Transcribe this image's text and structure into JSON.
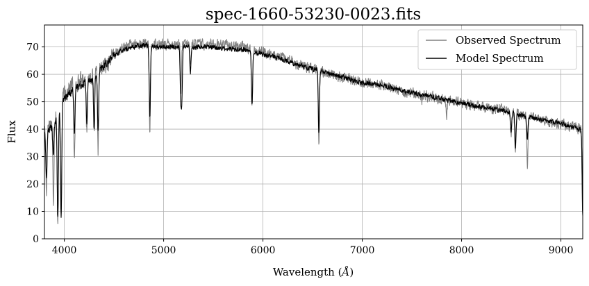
{
  "chart_data": {
    "type": "line",
    "title": "spec-1660-53230-0023.fits",
    "xlabel": "Wavelength (",
    "xlabel_unit": "Å",
    "xlabel_close": ")",
    "ylabel": "Flux",
    "xlim": [
      3800,
      9220
    ],
    "ylim": [
      0,
      78
    ],
    "xticks": [
      4000,
      5000,
      6000,
      7000,
      8000,
      9000
    ],
    "yticks": [
      0,
      10,
      20,
      30,
      40,
      50,
      60,
      70
    ],
    "grid": true,
    "legend_position": "top-right",
    "series": [
      {
        "name": "Observed Spectrum",
        "color": "#808080",
        "continuum": [
          [
            3800,
            40
          ],
          [
            3900,
            44
          ],
          [
            4000,
            53
          ],
          [
            4100,
            57
          ],
          [
            4200,
            58
          ],
          [
            4300,
            60
          ],
          [
            4400,
            63
          ],
          [
            4500,
            67
          ],
          [
            4600,
            70
          ],
          [
            4700,
            71
          ],
          [
            4800,
            71
          ],
          [
            4900,
            71
          ],
          [
            5000,
            71
          ],
          [
            5200,
            71
          ],
          [
            5400,
            71
          ],
          [
            5600,
            71
          ],
          [
            5800,
            70
          ],
          [
            6000,
            68
          ],
          [
            6200,
            66
          ],
          [
            6400,
            63
          ],
          [
            6600,
            61
          ],
          [
            6800,
            59
          ],
          [
            7000,
            57
          ],
          [
            7200,
            56
          ],
          [
            7400,
            54
          ],
          [
            7600,
            52.5
          ],
          [
            7800,
            51
          ],
          [
            8000,
            49.5
          ],
          [
            8200,
            48
          ],
          [
            8400,
            47
          ],
          [
            8600,
            45
          ],
          [
            8800,
            43.5
          ],
          [
            9000,
            42
          ],
          [
            9220,
            40
          ]
        ],
        "noise": 2.6,
        "lines": [
          [
            3820,
            18
          ],
          [
            3890,
            14
          ],
          [
            3934,
            4
          ],
          [
            3968,
            9
          ],
          [
            4102,
            28
          ],
          [
            4227,
            40
          ],
          [
            4300,
            38
          ],
          [
            4340,
            33
          ],
          [
            4861,
            39
          ],
          [
            5175,
            54
          ],
          [
            5270,
            63
          ],
          [
            5890,
            49
          ],
          [
            6563,
            36
          ],
          [
            7600,
            50
          ],
          [
            7850,
            45
          ],
          [
            8498,
            38
          ],
          [
            8542,
            30
          ],
          [
            8662,
            27
          ],
          [
            9220,
            9
          ]
        ]
      },
      {
        "name": "Model Spectrum",
        "color": "#000000",
        "continuum": [
          [
            3800,
            38
          ],
          [
            3900,
            42
          ],
          [
            4000,
            51
          ],
          [
            4100,
            55
          ],
          [
            4200,
            57
          ],
          [
            4300,
            59
          ],
          [
            4400,
            63
          ],
          [
            4500,
            67
          ],
          [
            4600,
            69
          ],
          [
            4700,
            70
          ],
          [
            4800,
            71
          ],
          [
            4900,
            70
          ],
          [
            5000,
            70
          ],
          [
            5200,
            70
          ],
          [
            5400,
            70
          ],
          [
            5600,
            69.5
          ],
          [
            5800,
            69
          ],
          [
            6000,
            67.5
          ],
          [
            6200,
            65.5
          ],
          [
            6400,
            63
          ],
          [
            6600,
            61
          ],
          [
            6800,
            59
          ],
          [
            7000,
            57
          ],
          [
            7200,
            56
          ],
          [
            7400,
            54
          ],
          [
            7600,
            52.5
          ],
          [
            7800,
            51
          ],
          [
            8000,
            49.5
          ],
          [
            8200,
            48
          ],
          [
            8400,
            47
          ],
          [
            8600,
            45
          ],
          [
            8800,
            43.5
          ],
          [
            9000,
            42
          ],
          [
            9220,
            39.5
          ]
        ],
        "noise": 1.2,
        "lines": [
          [
            3820,
            22
          ],
          [
            3889,
            30
          ],
          [
            3934,
            7
          ],
          [
            3968,
            7
          ],
          [
            4102,
            38
          ],
          [
            4227,
            42
          ],
          [
            4300,
            40
          ],
          [
            4340,
            39
          ],
          [
            4861,
            45
          ],
          [
            5172,
            53
          ],
          [
            5183,
            52
          ],
          [
            5270,
            61
          ],
          [
            5890,
            48.5
          ],
          [
            6563,
            39
          ],
          [
            8498,
            39
          ],
          [
            8542,
            33
          ],
          [
            8662,
            36
          ],
          [
            9220,
            8
          ]
        ]
      }
    ]
  }
}
